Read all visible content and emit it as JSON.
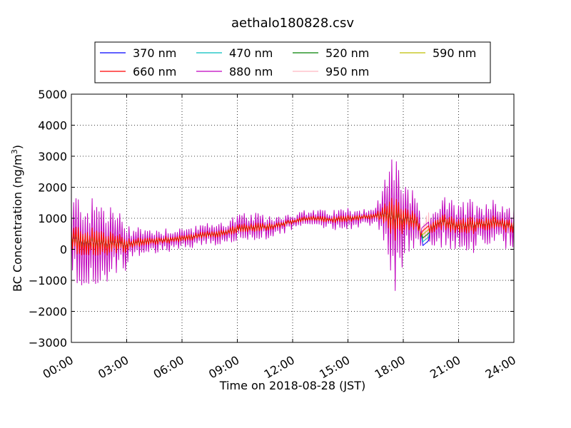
{
  "chart_data": {
    "type": "line",
    "title": "aethalo180828.csv",
    "xlabel": "Time on 2018-08-28 (JST)",
    "ylabel": "BC Concentration (ng/m³)",
    "ylabel_parts": {
      "main": "BC Concentration (ng/m",
      "sup": "3",
      "end": ")"
    },
    "xlim": [
      "00:00",
      "24:00"
    ],
    "ylim": [
      -3000,
      5000
    ],
    "x_ticks": [
      "00:00",
      "03:00",
      "06:00",
      "09:00",
      "12:00",
      "15:00",
      "18:00",
      "21:00",
      "24:00"
    ],
    "y_ticks": [
      "−3000",
      "−2000",
      "−1000",
      "0",
      "1000",
      "2000",
      "3000",
      "4000",
      "5000"
    ],
    "y_tick_values": [
      -3000,
      -2000,
      -1000,
      0,
      1000,
      2000,
      3000,
      4000,
      5000
    ],
    "x_tick_hours": [
      0,
      3,
      6,
      9,
      12,
      15,
      18,
      21,
      24
    ],
    "grid": true,
    "legend_placement": "top-center",
    "legend_columns": 4,
    "series": [
      {
        "name": "370 nm",
        "color": "#0000ff"
      },
      {
        "name": "470 nm",
        "color": "#00bfbf"
      },
      {
        "name": "520 nm",
        "color": "#008000"
      },
      {
        "name": "590 nm",
        "color": "#bfbf00"
      },
      {
        "name": "660 nm",
        "color": "#ff0000"
      },
      {
        "name": "880 nm",
        "color": "#bf00bf"
      },
      {
        "name": "950 nm",
        "color": "#ffb6c1"
      }
    ],
    "trend": {
      "hours": [
        0,
        1,
        2,
        3,
        4,
        5,
        6,
        7,
        8,
        9,
        10,
        11,
        12,
        13,
        14,
        15,
        16,
        17,
        18,
        18.7,
        19,
        19.5,
        20,
        21,
        22,
        23,
        24
      ],
      "values": [
        300,
        250,
        200,
        150,
        250,
        300,
        350,
        450,
        500,
        650,
        700,
        750,
        900,
        1000,
        950,
        1000,
        1050,
        1100,
        1000,
        900,
        450,
        700,
        900,
        750,
        800,
        850,
        750
      ]
    },
    "amplitude": {
      "hours": [
        0,
        0.5,
        1,
        1.5,
        2,
        2.5,
        3,
        3.5,
        4,
        5,
        6,
        7,
        8,
        9,
        10,
        11,
        12,
        13,
        14,
        15,
        16,
        16.5,
        17,
        17.5,
        18,
        18.5,
        19,
        20,
        21,
        22,
        23,
        24
      ],
      "values": [
        1400,
        1700,
        1400,
        1500,
        1400,
        1100,
        800,
        600,
        450,
        400,
        380,
        350,
        400,
        500,
        450,
        350,
        300,
        280,
        330,
        350,
        300,
        300,
        1200,
        2600,
        1600,
        900,
        500,
        800,
        800,
        900,
        850,
        700
      ]
    },
    "spread": [
      0.1,
      0.18,
      0.24,
      0.28,
      0.32,
      1.0,
      0.85
    ],
    "samples_per_hour": 16,
    "gap_hours": [
      19.0,
      19.4
    ]
  }
}
